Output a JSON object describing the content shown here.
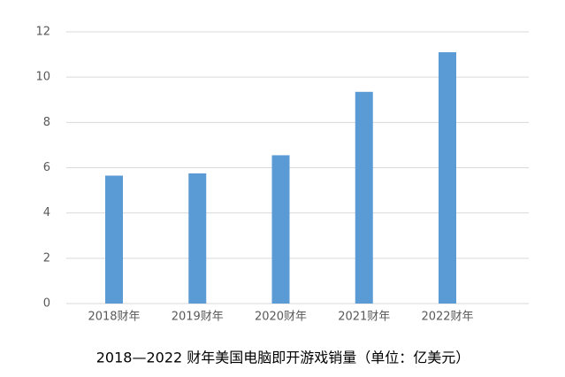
{
  "chart_data": {
    "type": "bar",
    "title": "2018—2022 财年美国电脑即开游戏销量（单位：亿美元）",
    "categories": [
      "2018财年",
      "2019财年",
      "2020财年",
      "2021财年",
      "2022财年"
    ],
    "values": [
      5.65,
      5.75,
      6.55,
      9.35,
      11.1
    ],
    "color": "#5b9bd5",
    "ylim": [
      0,
      12
    ],
    "yticks": [
      0,
      2,
      4,
      6,
      8,
      10,
      12
    ],
    "grid": true
  }
}
